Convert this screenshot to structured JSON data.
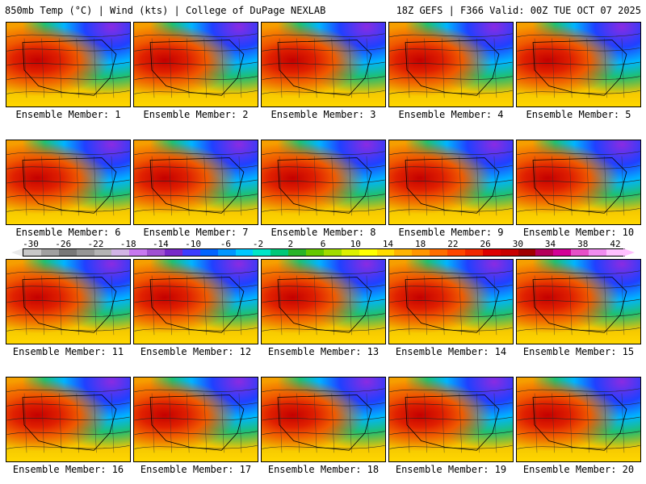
{
  "header": {
    "title_left": "850mb Temp (°C) | Wind (kts) | College of DuPage NEXLAB",
    "title_right": "18Z GEFS | F366 Valid: 00Z TUE OCT 07 2025"
  },
  "panels": [
    {
      "label": "Ensemble Member: 1"
    },
    {
      "label": "Ensemble Member: 2"
    },
    {
      "label": "Ensemble Member: 3"
    },
    {
      "label": "Ensemble Member: 4"
    },
    {
      "label": "Ensemble Member: 5"
    },
    {
      "label": "Ensemble Member: 6"
    },
    {
      "label": "Ensemble Member: 7"
    },
    {
      "label": "Ensemble Member: 8"
    },
    {
      "label": "Ensemble Member: 9"
    },
    {
      "label": "Ensemble Member: 10"
    },
    {
      "label": "Ensemble Member: 11"
    },
    {
      "label": "Ensemble Member: 12"
    },
    {
      "label": "Ensemble Member: 13"
    },
    {
      "label": "Ensemble Member: 14"
    },
    {
      "label": "Ensemble Member: 15"
    },
    {
      "label": "Ensemble Member: 16"
    },
    {
      "label": "Ensemble Member: 17"
    },
    {
      "label": "Ensemble Member: 18"
    },
    {
      "label": "Ensemble Member: 19"
    },
    {
      "label": "Ensemble Member: 20"
    }
  ],
  "colorbar": {
    "labels": [
      "-30",
      "-26",
      "-22",
      "-18",
      "-14",
      "-10",
      "-6",
      "-2",
      "2",
      "6",
      "10",
      "14",
      "18",
      "22",
      "26",
      "30",
      "34",
      "38",
      "42"
    ],
    "colors": [
      "#c8c8c8",
      "#a0a0a0",
      "#787878",
      "#969696",
      "#b4b4b4",
      "#d2b4e6",
      "#c878f0",
      "#a050d2",
      "#7828c8",
      "#3c3cff",
      "#0064ff",
      "#0096ff",
      "#00c8ff",
      "#00e6c8",
      "#00c878",
      "#28b428",
      "#64c800",
      "#a0dc00",
      "#dcf000",
      "#ffff00",
      "#ffdc00",
      "#ffb400",
      "#ff9600",
      "#ff6e00",
      "#ff4600",
      "#f02800",
      "#dc0000",
      "#c80000",
      "#a00000",
      "#b4005a",
      "#d20096",
      "#e650c8",
      "#f08cf0",
      "#ffc0ff"
    ]
  }
}
